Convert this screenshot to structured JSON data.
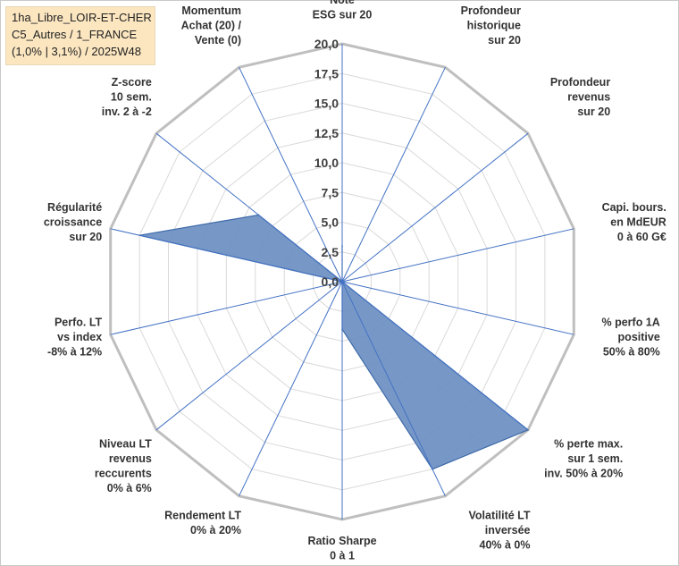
{
  "info_box": {
    "line1": "1ha_Libre_LOIR-ET-CHER",
    "line2": "C5_Autres / 1_FRANCE",
    "line3": "(1,0% | 3,1%) / 2025W48"
  },
  "colors": {
    "series_fill": "#6b8fc2",
    "series_stroke": "#3e6aa8",
    "spoke": "#4472c4",
    "grid_outer": "#bfbfbf",
    "grid_inner": "#d9d9d9",
    "text": "#404040"
  },
  "chart_data": {
    "type": "radar",
    "rmin": 0,
    "rmax": 20,
    "ticks": [
      "0,0",
      "2,5",
      "5,0",
      "7,5",
      "10,0",
      "12,5",
      "15,0",
      "17,5",
      "20,0"
    ],
    "tick_values": [
      0,
      2.5,
      5,
      7.5,
      10,
      12.5,
      15,
      17.5,
      20
    ],
    "axes": [
      [
        "Note",
        "ESG sur 20"
      ],
      [
        "Profondeur",
        "historique",
        "sur 20"
      ],
      [
        "Profondeur",
        "revenus",
        "sur 20"
      ],
      [
        "Capi. bours.",
        "en MdEUR",
        "0 à 60 G€"
      ],
      [
        "% perfo 1A",
        "positive",
        "50% à 80%"
      ],
      [
        "% perte max.",
        "sur 1 sem.",
        "inv. 50% à 20%"
      ],
      [
        "Volatilité LT",
        "inversée",
        "40% à 0%"
      ],
      [
        "Ratio Sharpe",
        "0 à 1"
      ],
      [
        "Rendement LT",
        "0% à 20%"
      ],
      [
        "Niveau LT",
        "revenus",
        "reccurents",
        "0% à 6%"
      ],
      [
        "Perfo. LT",
        "vs index",
        "-8% à 12%"
      ],
      [
        "Régularité",
        "croissance",
        "sur 20"
      ],
      [
        "Z-score",
        "10 sem.",
        "inv. 2 à -2"
      ],
      [
        "Momentum",
        "Achat (20) /",
        "Vente (0)"
      ]
    ],
    "series": [
      {
        "values": [
          3,
          0,
          0,
          0,
          0,
          20,
          17.5,
          4,
          0,
          0,
          0,
          17.5,
          9,
          0
        ]
      }
    ]
  }
}
